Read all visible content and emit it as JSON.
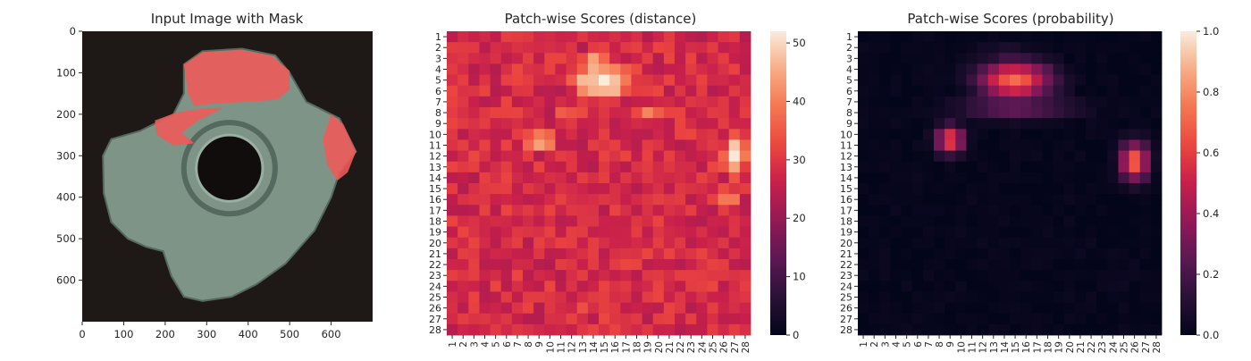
{
  "colors": {
    "background": "#ffffff",
    "text": "#262626",
    "image_bg": "#1e1816",
    "part_fill": "#7d9486",
    "part_dark": "#55695e",
    "mask_red": "#f05a5a"
  },
  "panels": [
    {
      "title": "Input Image with Mask"
    },
    {
      "title": "Patch-wise Scores (distance)"
    },
    {
      "title": "Patch-wise Scores (probability)"
    }
  ],
  "chart_data": [
    {
      "type": "image",
      "title": "Input Image with Mask",
      "xlim": [
        0,
        700
      ],
      "ylim": [
        700,
        0
      ],
      "x_ticks": [
        0,
        100,
        200,
        300,
        400,
        500,
        600
      ],
      "y_ticks": [
        0,
        100,
        200,
        300,
        400,
        500,
        600
      ],
      "mask_regions": [
        "upper-left protrusion",
        "top arc",
        "right protrusion"
      ]
    },
    {
      "type": "heatmap",
      "title": "Patch-wise Scores (distance)",
      "cmap": "rocket",
      "rows": 28,
      "cols": 28,
      "row_labels": [
        "1",
        "2",
        "3",
        "4",
        "5",
        "6",
        "7",
        "8",
        "9",
        "10",
        "11",
        "12",
        "13",
        "14",
        "15",
        "16",
        "17",
        "18",
        "19",
        "20",
        "21",
        "22",
        "23",
        "24",
        "25",
        "26",
        "27",
        "28"
      ],
      "col_labels": [
        "1",
        "2",
        "3",
        "4",
        "5",
        "6",
        "7",
        "8",
        "9",
        "10",
        "11",
        "12",
        "13",
        "14",
        "15",
        "16",
        "17",
        "18",
        "19",
        "20",
        "21",
        "22",
        "23",
        "24",
        "25",
        "26",
        "27",
        "28"
      ],
      "colorbar": {
        "min": 0,
        "max": 52,
        "ticks": [
          0,
          10,
          20,
          30,
          40,
          50
        ]
      },
      "base_value": 28,
      "hotspots": [
        {
          "row": 5,
          "col": 15,
          "peak": 52,
          "sx": 3.2,
          "sy": 1.9
        },
        {
          "row": 10.5,
          "col": 9,
          "peak": 46,
          "sx": 1.6,
          "sy": 1.5
        },
        {
          "row": 12,
          "col": 27,
          "peak": 50,
          "sx": 1.4,
          "sy": 2.0
        },
        {
          "row": 8,
          "col": 12,
          "peak": 38,
          "sx": 1.8,
          "sy": 1.0
        },
        {
          "row": 8,
          "col": 19,
          "peak": 38,
          "sx": 1.8,
          "sy": 1.0
        },
        {
          "row": 3,
          "col": 14,
          "peak": 40,
          "sx": 2.5,
          "sy": 1.2
        },
        {
          "row": 16,
          "col": 26,
          "peak": 40,
          "sx": 2.0,
          "sy": 1.5
        },
        {
          "row": 25.5,
          "col": 13,
          "peak": 37,
          "sx": 1.2,
          "sy": 1.0
        }
      ]
    },
    {
      "type": "heatmap",
      "title": "Patch-wise Scores (probability)",
      "cmap": "rocket",
      "rows": 28,
      "cols": 28,
      "row_labels": [
        "1",
        "2",
        "3",
        "4",
        "5",
        "6",
        "7",
        "8",
        "9",
        "10",
        "11",
        "12",
        "13",
        "14",
        "15",
        "16",
        "17",
        "18",
        "19",
        "20",
        "21",
        "22",
        "23",
        "24",
        "25",
        "26",
        "27",
        "28"
      ],
      "col_labels": [
        "1",
        "2",
        "3",
        "4",
        "5",
        "6",
        "7",
        "8",
        "9",
        "10",
        "11",
        "12",
        "13",
        "14",
        "15",
        "16",
        "17",
        "18",
        "19",
        "20",
        "21",
        "22",
        "23",
        "24",
        "25",
        "26",
        "27",
        "28"
      ],
      "colorbar": {
        "min": 0,
        "max": 1,
        "ticks": [
          0.0,
          0.2,
          0.4,
          0.6,
          0.8,
          1.0
        ]
      },
      "tick_labels": [
        "0.0",
        "0.2",
        "0.4",
        "0.6",
        "0.8",
        "1.0"
      ],
      "base_value": 0.02,
      "hotspots": [
        {
          "row": 5,
          "col": 15,
          "peak": 0.72,
          "sx": 2.3,
          "sy": 1.2
        },
        {
          "row": 10.5,
          "col": 9,
          "peak": 0.65,
          "sx": 0.9,
          "sy": 0.9
        },
        {
          "row": 12.5,
          "col": 26,
          "peak": 0.72,
          "sx": 0.9,
          "sy": 1.2
        },
        {
          "row": 7.5,
          "col": 15,
          "peak": 0.3,
          "sx": 3.6,
          "sy": 0.8
        },
        {
          "row": 3,
          "col": 14,
          "peak": 0.12,
          "sx": 2.0,
          "sy": 1.0
        }
      ]
    }
  ]
}
